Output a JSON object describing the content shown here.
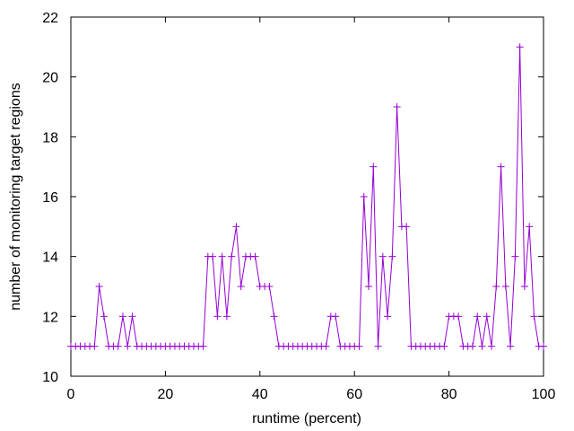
{
  "chart_data": {
    "type": "line",
    "title": "",
    "xlabel": "runtime (percent)",
    "ylabel": "number of monitoring target regions",
    "xlim": [
      0,
      100
    ],
    "ylim": [
      10,
      22
    ],
    "xticks": [
      0,
      20,
      40,
      60,
      80,
      100
    ],
    "yticks": [
      10,
      12,
      14,
      16,
      18,
      20,
      22
    ],
    "grid": false,
    "marker": "plus",
    "color": "#9400d3",
    "series": [
      {
        "x": [
          0,
          1,
          2,
          3,
          4,
          5,
          6,
          7,
          8,
          9,
          10,
          11,
          12,
          13,
          14,
          15,
          16,
          17,
          18,
          19,
          20,
          21,
          22,
          23,
          24,
          25,
          26,
          27,
          28,
          29,
          30,
          31,
          32,
          33,
          34,
          35,
          36,
          37,
          38,
          39,
          40,
          41,
          42,
          43,
          44,
          45,
          46,
          47,
          48,
          49,
          50,
          51,
          52,
          53,
          54,
          55,
          56,
          57,
          58,
          59,
          60,
          61,
          62,
          63,
          64,
          65,
          66,
          67,
          68,
          69,
          70,
          71,
          72,
          73,
          74,
          75,
          76,
          77,
          78,
          79,
          80,
          81,
          82,
          83,
          84,
          85,
          86,
          87,
          88,
          89,
          90,
          91,
          92,
          93,
          94,
          95,
          96,
          97,
          98,
          99,
          100
        ],
        "y": [
          11,
          11,
          11,
          11,
          11,
          11,
          13,
          12,
          11,
          11,
          11,
          12,
          11,
          12,
          11,
          11,
          11,
          11,
          11,
          11,
          11,
          11,
          11,
          11,
          11,
          11,
          11,
          11,
          11,
          14,
          14,
          12,
          14,
          12,
          14,
          15,
          13,
          14,
          14,
          14,
          13,
          13,
          13,
          12,
          11,
          11,
          11,
          11,
          11,
          11,
          11,
          11,
          11,
          11,
          11,
          12,
          12,
          11,
          11,
          11,
          11,
          11,
          16,
          13,
          17,
          11,
          14,
          12,
          14,
          19,
          15,
          15,
          11,
          11,
          11,
          11,
          11,
          11,
          11,
          11,
          12,
          12,
          12,
          11,
          11,
          11,
          12,
          11,
          12,
          11,
          13,
          17,
          13,
          11,
          14,
          21,
          13,
          15,
          12,
          11,
          11
        ]
      }
    ]
  }
}
